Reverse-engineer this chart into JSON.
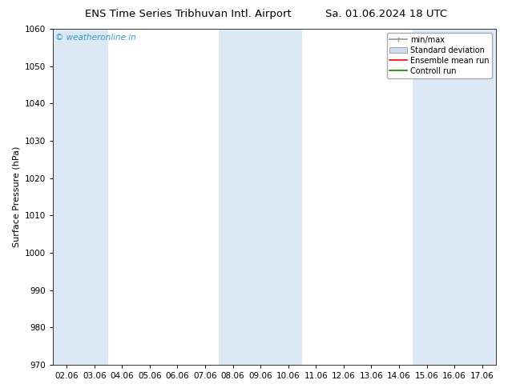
{
  "title_left": "ENS Time Series Tribhuvan Intl. Airport",
  "title_right": "Sa. 01.06.2024 18 UTC",
  "ylabel": "Surface Pressure (hPa)",
  "ylim": [
    970,
    1060
  ],
  "yticks": [
    970,
    980,
    990,
    1000,
    1010,
    1020,
    1030,
    1040,
    1050,
    1060
  ],
  "x_labels": [
    "02.06",
    "03.06",
    "04.06",
    "05.06",
    "06.06",
    "07.06",
    "08.06",
    "09.06",
    "10.06",
    "11.06",
    "12.06",
    "13.06",
    "14.06",
    "15.06",
    "16.06",
    "17.06"
  ],
  "x_values": [
    0,
    1,
    2,
    3,
    4,
    5,
    6,
    7,
    8,
    9,
    10,
    11,
    12,
    13,
    14,
    15
  ],
  "shaded_ranges": [
    [
      0,
      1
    ],
    [
      6,
      8
    ],
    [
      13,
      15
    ]
  ],
  "shade_color": "#dce9f5",
  "watermark": "© weatheronline.in",
  "watermark_color": "#3399cc",
  "bg_color": "#ffffff",
  "legend_minmax_color": "#999999",
  "legend_stddev_color": "#ccddef",
  "legend_mean_color": "#ff0000",
  "legend_control_color": "#008800",
  "title_fontsize": 9.5,
  "ylabel_fontsize": 8,
  "tick_fontsize": 7.5,
  "legend_fontsize": 7,
  "watermark_fontsize": 7.5
}
